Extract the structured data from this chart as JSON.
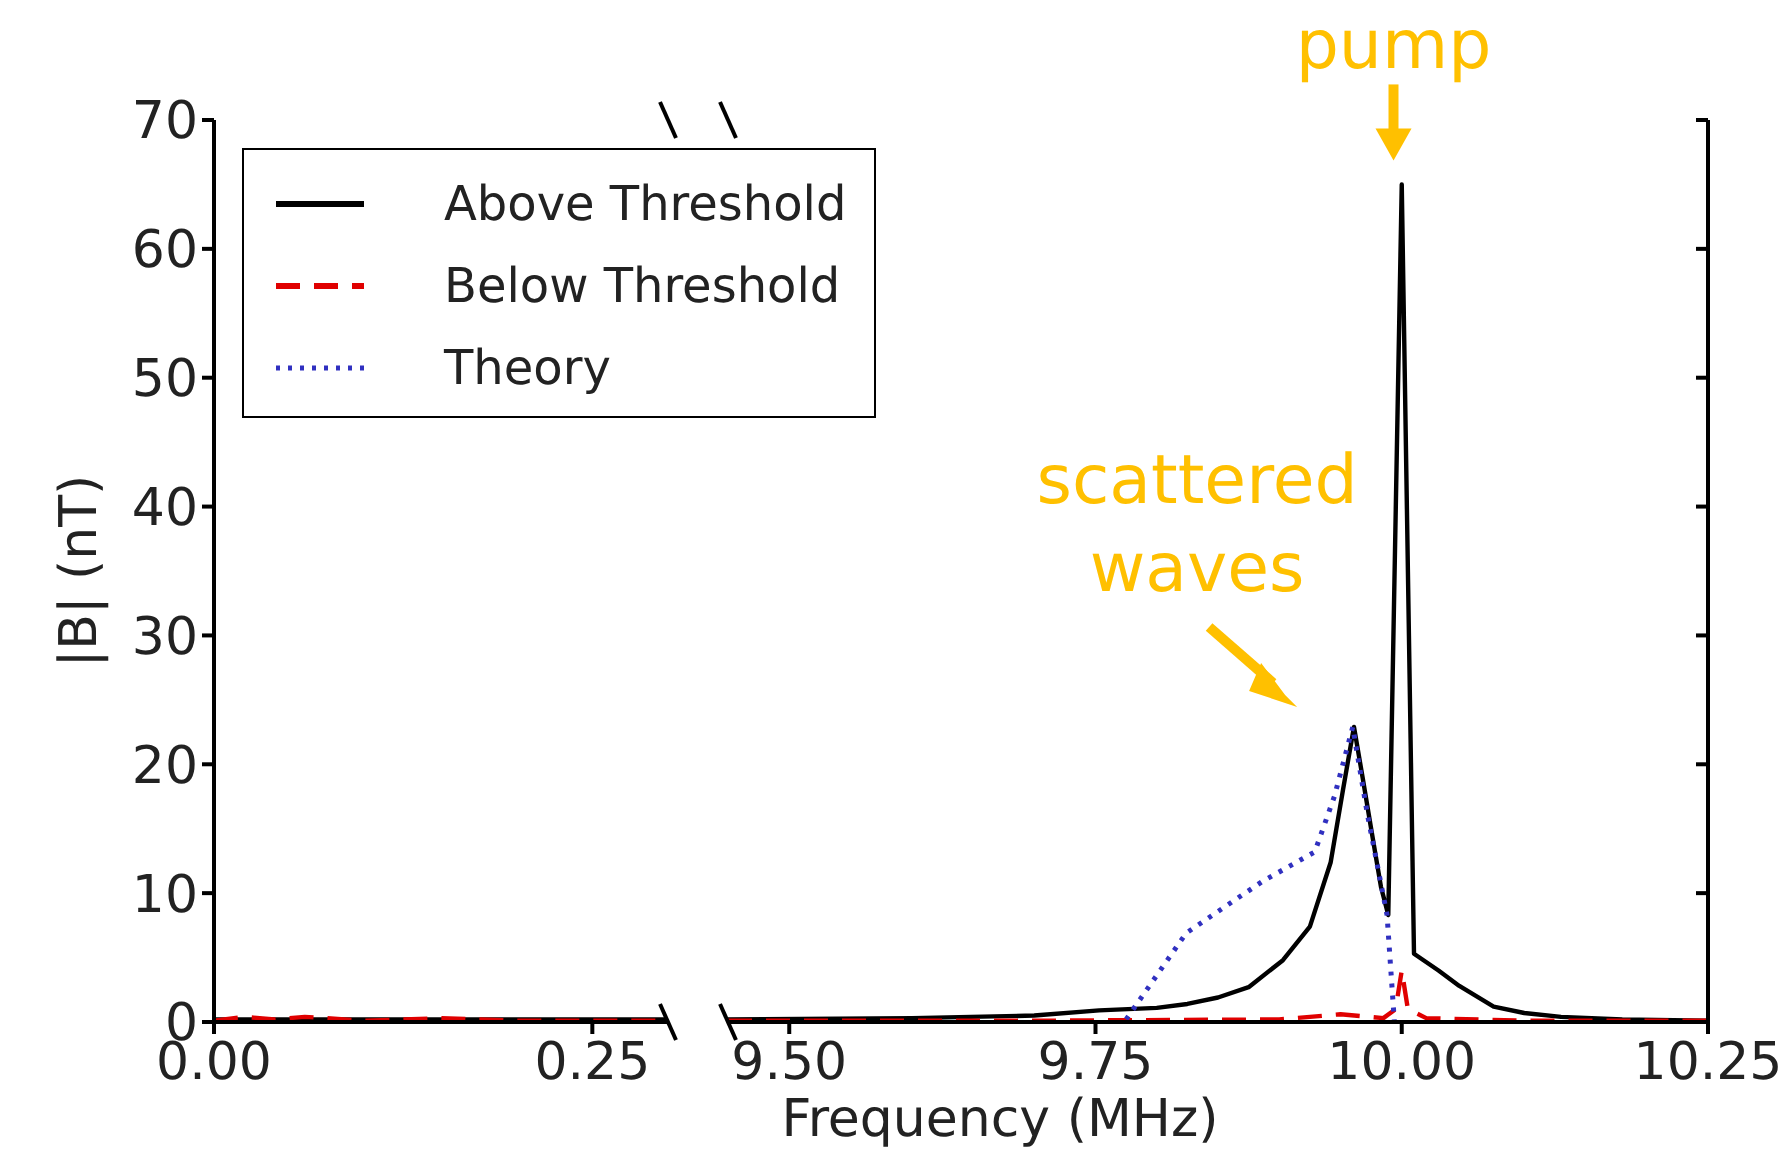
{
  "chart_data": [
    {
      "type": "line",
      "ylabel": "|B| (nT)",
      "xlim": [
        0,
        0.3
      ],
      "xticks": [
        {
          "value": 0,
          "label": "0.00"
        },
        {
          "value": 0.25,
          "label": "0.25"
        }
      ],
      "ylim": [
        0,
        70
      ],
      "yticks": [
        0,
        10,
        20,
        30,
        40,
        50,
        60,
        70
      ],
      "marker": "none",
      "series": [
        {
          "color": "#000000",
          "line_style": "solid",
          "x": [
            0,
            0.05,
            0.1,
            0.15,
            0.2,
            0.25,
            0.3
          ],
          "values": [
            0.2,
            0.2,
            0.2,
            0.2,
            0.2,
            0.2,
            0.2
          ]
        },
        {
          "color": "#e00000",
          "line_style": "dashed",
          "x": [
            0,
            0.02,
            0.04,
            0.06,
            0.1,
            0.15,
            0.2,
            0.3
          ],
          "values": [
            0.1,
            0.4,
            0.2,
            0.4,
            0.1,
            0.3,
            0.1,
            0.1
          ]
        }
      ]
    },
    {
      "type": "line",
      "xlabel": "Frequency (MHz)",
      "xlim": [
        9.45,
        10.25
      ],
      "xticks": [
        {
          "value": 9.5,
          "label": "9.50"
        },
        {
          "value": 9.75,
          "label": "9.75"
        },
        {
          "value": 10,
          "label": "10.00"
        },
        {
          "value": 10.25,
          "label": "10.25"
        }
      ],
      "ylim": [
        0,
        70
      ],
      "yticks": [
        0,
        10,
        20,
        30,
        40,
        50,
        60,
        70
      ],
      "tick_labels": "x",
      "marker": "none",
      "legend": "top left",
      "annotations": [
        {
          "text": "pump",
          "x": 10.0,
          "y": 65
        },
        {
          "text": "scattered waves",
          "x": 9.96,
          "y": 22.9
        }
      ],
      "series": [
        {
          "name": "Above Threshold",
          "color": "#000000",
          "line_style": "solid",
          "x": [
            9.45,
            9.6,
            9.7,
            9.753,
            9.8,
            9.825,
            9.85,
            9.875,
            9.903,
            9.925,
            9.942,
            9.952,
            9.961,
            9.968,
            9.975,
            9.983,
            9.989,
            10.0,
            10.01,
            10.03,
            10.047,
            10.075,
            10.1,
            10.13,
            10.18,
            10.25
          ],
          "values": [
            0.2,
            0.3,
            0.5,
            0.9,
            1.1,
            1.4,
            1.9,
            2.7,
            4.8,
            7.4,
            12.4,
            18,
            22.9,
            19,
            15,
            10.5,
            8.3,
            65,
            5.3,
            4,
            2.8,
            1.2,
            0.7,
            0.4,
            0.2,
            0.1
          ]
        },
        {
          "name": "Below Threshold",
          "color": "#e00000",
          "line_style": "dashed",
          "x": [
            9.45,
            9.7,
            9.9,
            9.95,
            9.985,
            9.995,
            10.0,
            10.005,
            10.02,
            10.1,
            10.25
          ],
          "values": [
            0.1,
            0.1,
            0.2,
            0.6,
            0.3,
            1.0,
            4.0,
            1.0,
            0.3,
            0.1,
            0.1
          ]
        },
        {
          "name": "Theory",
          "color": "#3030c0",
          "line_style": "dotted",
          "x": [
            9.775,
            9.824,
            9.886,
            9.929,
            9.945,
            9.96,
            9.972,
            9.988,
            9.994
          ],
          "values": [
            0.2,
            6.9,
            10.9,
            13.2,
            17.5,
            22.9,
            16.1,
            8.3,
            0
          ]
        }
      ]
    }
  ]
}
